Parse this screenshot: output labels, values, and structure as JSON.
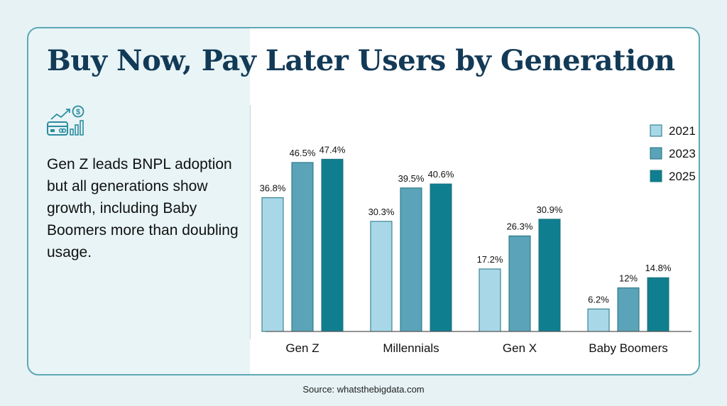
{
  "title": "Buy Now, Pay Later Users by Generation",
  "description": "Gen Z leads BNPL adoption but all generations show growth, including Baby Boomers more than doubling usage.",
  "icon_name": "credit-card-growth-icon",
  "source": "Source: whatsthebigdata.com",
  "colors": {
    "2021": "#a8d8e8",
    "2023": "#5ba3b8",
    "2025": "#0f7f8f",
    "title": "#123a57",
    "border": "#5fa8b5"
  },
  "chart_data": {
    "type": "bar",
    "categories": [
      "Gen Z",
      "Millennials",
      "Gen X",
      "Baby Boomers"
    ],
    "series": [
      {
        "name": "2021",
        "values": [
          36.8,
          30.3,
          17.2,
          6.2
        ],
        "labels": [
          "36.8%",
          "30.3%",
          "17.2%",
          "6.2%"
        ]
      },
      {
        "name": "2023",
        "values": [
          46.5,
          39.5,
          26.3,
          12
        ],
        "labels": [
          "46.5%",
          "39.5%",
          "26.3%",
          "12%"
        ]
      },
      {
        "name": "2025",
        "values": [
          47.4,
          40.6,
          30.9,
          14.8
        ],
        "labels": [
          "47.4%",
          "40.6%",
          "30.9%",
          "14.8%"
        ]
      }
    ],
    "ylim": [
      0,
      50
    ],
    "grid": false,
    "legend": "top-right"
  }
}
